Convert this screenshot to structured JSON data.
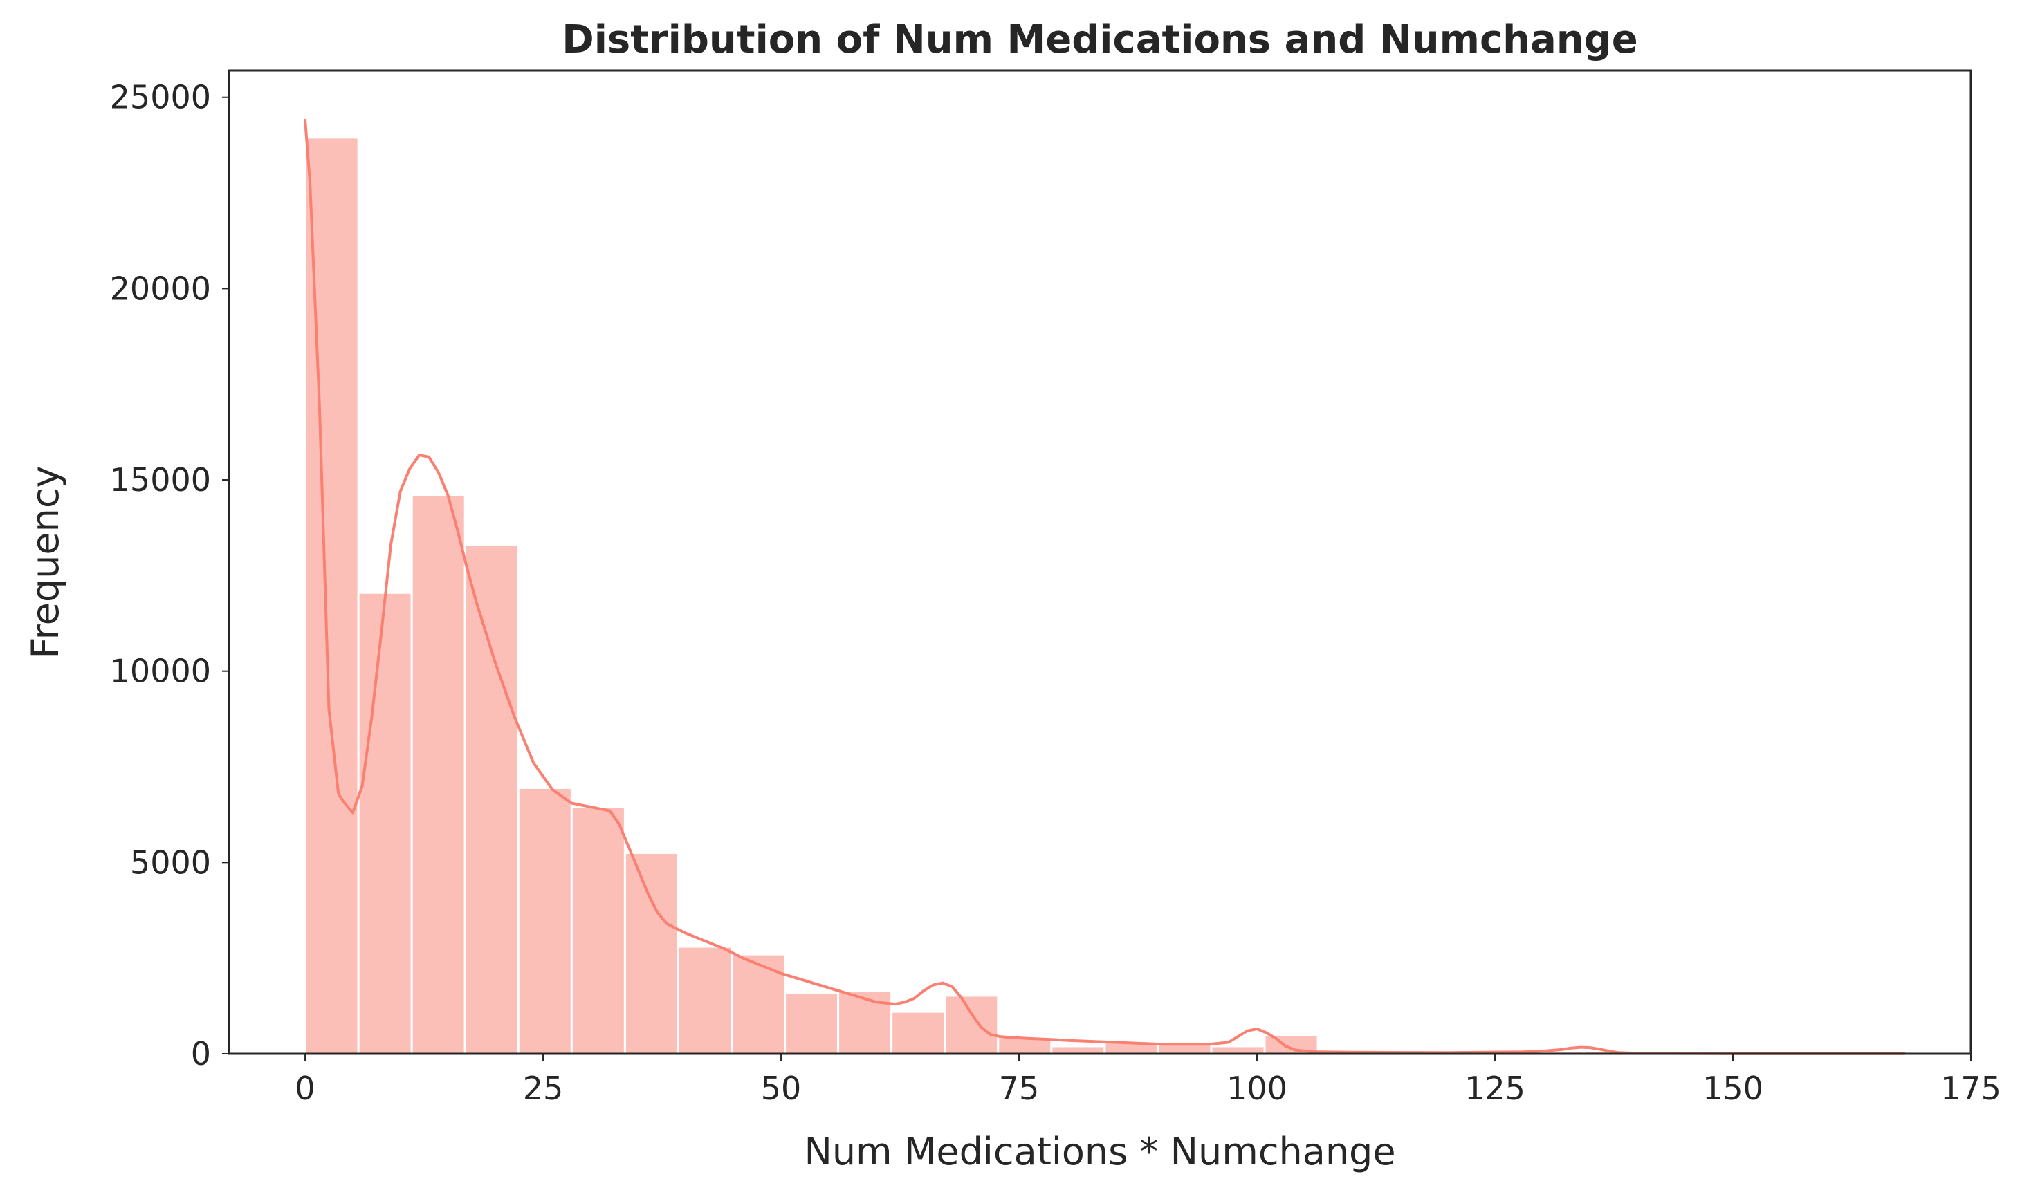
{
  "chart_data": {
    "type": "bar",
    "subtype": "histogram-with-kde",
    "title": "Distribution of Num Medications and Numchange",
    "xlabel": "Num Medications * Numchange",
    "ylabel": "Frequency",
    "xlim": [
      -8,
      175
    ],
    "ylim": [
      0,
      25700
    ],
    "x_ticks": [
      "0",
      "25",
      "50",
      "75",
      "100",
      "125",
      "150",
      "175"
    ],
    "y_ticks": [
      "0",
      "5000",
      "10000",
      "15000",
      "20000",
      "25000"
    ],
    "bin_edges": [
      0,
      5.6,
      11.2,
      16.8,
      22.4,
      28,
      33.6,
      39.2,
      44.8,
      50.4,
      56,
      61.6,
      67.2,
      72.8,
      78.4,
      84,
      89.6,
      95.2,
      100.8,
      106.4,
      112,
      117.6,
      123.2,
      128.8,
      134.4,
      140,
      145.6,
      151.2,
      156.8,
      162.4,
      168
    ],
    "values": [
      23950,
      12050,
      14600,
      13300,
      6950,
      6450,
      5250,
      2800,
      2600,
      1600,
      1650,
      1100,
      1520,
      430,
      200,
      300,
      250,
      200,
      480,
      40,
      30,
      25,
      20,
      60,
      80,
      10,
      5,
      5,
      5,
      10
    ],
    "kde": {
      "x": [
        0,
        0.5,
        1.5,
        2.5,
        3.5,
        4,
        5,
        6,
        7,
        8,
        9,
        10,
        11,
        12,
        13,
        14,
        15,
        16,
        17,
        18,
        19,
        20,
        22,
        24,
        26,
        28,
        30,
        32,
        33,
        34,
        35,
        36,
        37,
        38,
        40,
        42,
        44,
        46,
        48,
        50,
        52,
        54,
        56,
        58,
        60,
        62,
        63,
        64,
        65,
        66,
        67,
        68,
        69,
        70,
        71,
        72,
        73,
        74,
        76,
        78,
        80,
        85,
        90,
        95,
        97,
        98,
        99,
        100,
        101,
        102,
        103,
        104,
        106,
        110,
        120,
        128,
        130,
        132,
        133,
        134,
        135,
        136,
        137,
        138,
        140,
        150,
        160,
        168
      ],
      "y": [
        24400,
        22800,
        17000,
        9000,
        6800,
        6600,
        6300,
        7000,
        8800,
        11000,
        13300,
        14700,
        15300,
        15650,
        15600,
        15200,
        14600,
        13700,
        12700,
        11800,
        11000,
        10200,
        8800,
        7600,
        6900,
        6550,
        6450,
        6350,
        6000,
        5400,
        4800,
        4200,
        3700,
        3400,
        3150,
        2950,
        2750,
        2500,
        2300,
        2100,
        1950,
        1800,
        1650,
        1500,
        1350,
        1300,
        1350,
        1450,
        1650,
        1800,
        1850,
        1750,
        1450,
        1050,
        700,
        500,
        450,
        430,
        400,
        380,
        350,
        300,
        250,
        250,
        300,
        450,
        600,
        650,
        550,
        400,
        200,
        100,
        50,
        40,
        30,
        50,
        70,
        110,
        150,
        170,
        160,
        120,
        70,
        30,
        10,
        5,
        5,
        5
      ]
    },
    "bar_color": "#fa8072",
    "bar_alpha": 0.5,
    "line_color": "#fa8072",
    "grid": false,
    "legend": null
  }
}
